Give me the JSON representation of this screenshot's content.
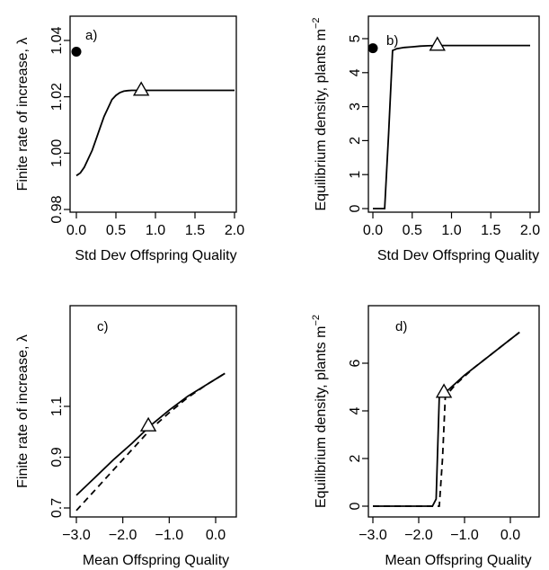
{
  "chart_data": [
    {
      "type": "line",
      "panel_label": "a)",
      "xlabel": "Std Dev Offspring Quality",
      "ylabel": "Finite rate of increase, λ",
      "xlim": [
        0,
        2.0
      ],
      "ylim": [
        0.98,
        1.04
      ],
      "x_ticks": [
        "0.0",
        "0.5",
        "1.0",
        "1.5",
        "2.0"
      ],
      "y_ticks": [
        "0.98",
        "1.00",
        "1.02",
        "1.04"
      ],
      "grid": false,
      "series": [
        {
          "style": "solid",
          "x": [
            0.0,
            0.05,
            0.1,
            0.15,
            0.2,
            0.25,
            0.3,
            0.35,
            0.4,
            0.45,
            0.5,
            0.55,
            0.6,
            0.65,
            0.7,
            0.75,
            0.8,
            1.0,
            1.5,
            2.0
          ],
          "y": [
            0.992,
            0.993,
            0.995,
            0.998,
            1.001,
            1.005,
            1.009,
            1.013,
            1.016,
            1.019,
            1.0205,
            1.0215,
            1.022,
            1.0222,
            1.0223,
            1.0223,
            1.0223,
            1.0223,
            1.0223,
            1.0223
          ]
        }
      ],
      "markers": [
        {
          "shape": "filled-circle",
          "x": 0.0,
          "y": 1.036
        },
        {
          "shape": "open-triangle",
          "x": 0.82,
          "y": 1.0225
        }
      ]
    },
    {
      "type": "line",
      "panel_label": "b)",
      "xlabel": "Std Dev Offspring Quality",
      "ylabel": "Equilibrium density, plants  m",
      "ylabel_sup": "−2",
      "xlim": [
        0,
        2.0
      ],
      "ylim": [
        0,
        5
      ],
      "x_ticks": [
        "0.0",
        "0.5",
        "1.0",
        "1.5",
        "2.0"
      ],
      "y_ticks": [
        "0",
        "1",
        "2",
        "3",
        "4",
        "5"
      ],
      "grid": false,
      "series": [
        {
          "style": "solid",
          "x": [
            0.0,
            0.15,
            0.2,
            0.25,
            0.3,
            0.4,
            0.5,
            0.6,
            0.7,
            0.82,
            1.0,
            1.5,
            2.0
          ],
          "y": [
            0.0,
            0.0,
            2.2,
            4.65,
            4.7,
            4.74,
            4.76,
            4.78,
            4.79,
            4.8,
            4.8,
            4.8,
            4.8
          ]
        }
      ],
      "markers": [
        {
          "shape": "filled-circle",
          "x": 0.0,
          "y": 4.72
        },
        {
          "shape": "open-triangle",
          "x": 0.82,
          "y": 4.82
        }
      ]
    },
    {
      "type": "line",
      "panel_label": "c)",
      "xlabel": "Mean Offspring Quality",
      "ylabel": "Finite rate of increase, λ",
      "xlim": [
        -3.0,
        0.2
      ],
      "ylim": [
        0.7,
        1.2
      ],
      "x_ticks": [
        "−3.0",
        "−2.0",
        "−1.0",
        "0.0"
      ],
      "y_ticks": [
        "0.7",
        "0.9",
        "1.1"
      ],
      "grid": false,
      "series": [
        {
          "style": "solid",
          "x": [
            -3.0,
            -2.6,
            -2.2,
            -1.8,
            -1.4,
            -1.0,
            -0.6,
            -0.2,
            0.2
          ],
          "y": [
            0.75,
            0.82,
            0.89,
            0.955,
            1.025,
            1.085,
            1.14,
            1.185,
            1.23
          ]
        },
        {
          "style": "dashed",
          "x": [
            -3.0,
            -2.6,
            -2.2,
            -1.8,
            -1.4,
            -1.0,
            -0.6,
            -0.2,
            0.2
          ],
          "y": [
            0.69,
            0.77,
            0.85,
            0.93,
            1.01,
            1.075,
            1.135,
            1.185,
            1.23
          ]
        }
      ],
      "markers": [
        {
          "shape": "open-triangle",
          "x": -1.45,
          "y": 1.025
        }
      ]
    },
    {
      "type": "line",
      "panel_label": "d)",
      "xlabel": "Mean Offspring Quality",
      "ylabel": "Equilibrium density, plants  m",
      "ylabel_sup": "−2",
      "xlim": [
        -3.0,
        0.2
      ],
      "ylim": [
        0,
        7
      ],
      "x_ticks": [
        "−3.0",
        "−2.0",
        "−1.0",
        "0.0"
      ],
      "y_ticks": [
        "0",
        "2",
        "4",
        "6"
      ],
      "grid": false,
      "series": [
        {
          "style": "solid",
          "x": [
            -3.0,
            -1.7,
            -1.62,
            -1.55,
            -1.4,
            -1.0,
            -0.6,
            -0.2,
            0.2
          ],
          "y": [
            0.0,
            0.0,
            0.3,
            4.6,
            4.8,
            5.5,
            6.1,
            6.7,
            7.3
          ]
        },
        {
          "style": "dashed",
          "x": [
            -3.0,
            -1.55,
            -1.48,
            -1.42,
            -1.2,
            -0.8,
            -0.4,
            0.0,
            0.2
          ],
          "y": [
            0.0,
            0.0,
            2.0,
            4.6,
            5.1,
            5.8,
            6.4,
            7.0,
            7.3
          ]
        }
      ],
      "markers": [
        {
          "shape": "open-triangle",
          "x": -1.45,
          "y": 4.8
        }
      ]
    }
  ]
}
